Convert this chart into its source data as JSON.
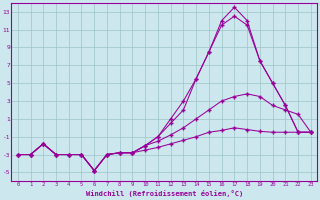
{
  "bg_color": "#cce8ee",
  "line_color": "#990099",
  "grid_color": "#9dc4c8",
  "xlabel": "Windchill (Refroidissement éolien,°C)",
  "tick_color": "#990099",
  "ylim": [
    -6,
    14
  ],
  "xlim": [
    -0.5,
    23.5
  ],
  "yticks": [
    -5,
    -3,
    -1,
    1,
    3,
    5,
    7,
    9,
    11,
    13
  ],
  "xticks": [
    0,
    1,
    2,
    3,
    4,
    5,
    6,
    7,
    8,
    9,
    10,
    11,
    12,
    13,
    14,
    15,
    16,
    17,
    18,
    19,
    20,
    21,
    22,
    23
  ],
  "line1_x": [
    0,
    1,
    2,
    3,
    4,
    5,
    6,
    7,
    8,
    9,
    10,
    11,
    12,
    13,
    14,
    15,
    16,
    17,
    18,
    19,
    20,
    21,
    22,
    23
  ],
  "line1_y": [
    -3.0,
    -3.0,
    -1.8,
    -3.0,
    -3.0,
    -3.0,
    -4.8,
    -3.0,
    -2.8,
    -2.8,
    -2.5,
    -2.2,
    -1.8,
    -1.4,
    -1.0,
    -0.5,
    -0.3,
    0.0,
    -0.2,
    -0.4,
    -0.5,
    -0.5,
    -0.5,
    -0.5
  ],
  "line2_x": [
    0,
    1,
    2,
    3,
    4,
    5,
    6,
    7,
    8,
    9,
    10,
    11,
    12,
    13,
    14,
    15,
    16,
    17,
    18,
    19,
    20,
    21,
    22,
    23
  ],
  "line2_y": [
    -3.0,
    -3.0,
    -1.8,
    -3.0,
    -3.0,
    -3.0,
    -4.8,
    -3.0,
    -2.8,
    -2.8,
    -2.0,
    -1.5,
    -0.8,
    0.0,
    1.0,
    2.0,
    3.0,
    3.5,
    3.8,
    3.5,
    2.5,
    2.0,
    1.5,
    -0.5
  ],
  "line3_x": [
    0,
    1,
    2,
    3,
    4,
    5,
    6,
    7,
    8,
    9,
    10,
    11,
    12,
    13,
    14,
    15,
    16,
    17,
    18,
    19,
    20,
    21,
    22,
    23
  ],
  "line3_y": [
    -3.0,
    -3.0,
    -1.8,
    -3.0,
    -3.0,
    -3.0,
    -4.8,
    -3.0,
    -2.8,
    -2.8,
    -2.0,
    -1.0,
    0.5,
    2.0,
    5.5,
    8.5,
    11.5,
    12.5,
    11.5,
    7.5,
    5.0,
    2.5,
    -0.5,
    -0.5
  ],
  "line4_x": [
    0,
    1,
    2,
    3,
    4,
    5,
    6,
    7,
    8,
    9,
    10,
    11,
    12,
    13,
    14,
    15,
    16,
    17,
    18,
    19,
    20,
    21,
    22,
    23
  ],
  "line4_y": [
    -3.0,
    -3.0,
    -1.8,
    -3.0,
    -3.0,
    -3.0,
    -4.8,
    -3.0,
    -2.8,
    -2.8,
    -2.0,
    -1.0,
    1.0,
    3.0,
    5.5,
    8.5,
    12.0,
    13.5,
    12.0,
    7.5,
    5.0,
    2.5,
    -0.5,
    -0.5
  ]
}
